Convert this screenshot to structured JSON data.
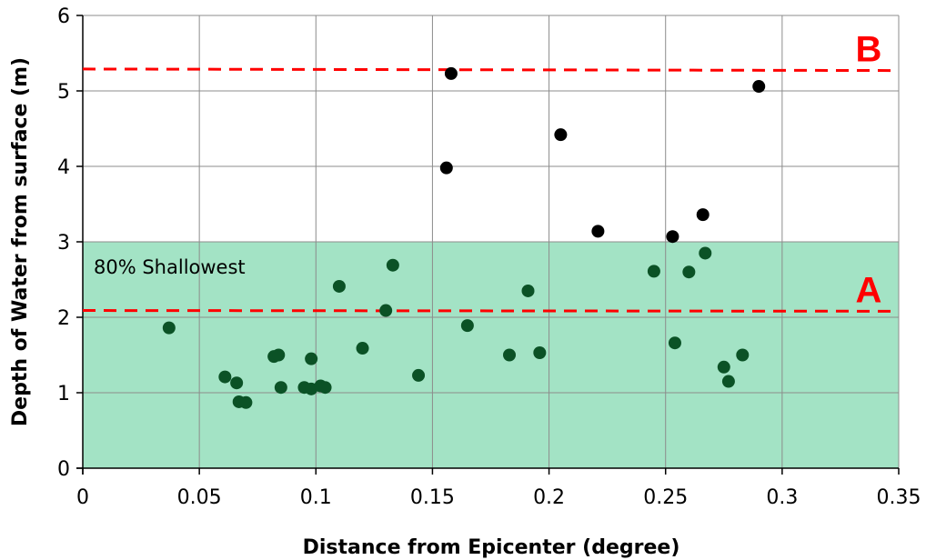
{
  "chart_data": {
    "type": "scatter",
    "xlabel": "Distance from Epicenter (degree)",
    "ylabel": "Depth of Water from surface (m)",
    "xlim": [
      0,
      0.35
    ],
    "ylim": [
      0,
      6
    ],
    "x_ticks": [
      "0",
      "0.05",
      "0.1",
      "0.15",
      "0.2",
      "0.25",
      "0.3",
      "0.35"
    ],
    "y_ticks": [
      "0",
      "1",
      "2",
      "3",
      "4",
      "5",
      "6"
    ],
    "grid": true,
    "shaded_region": {
      "label": "80% Shallowest",
      "y_from": 0,
      "y_to": 3,
      "color": "#a3e3c5"
    },
    "reference_lines": [
      {
        "label": "A",
        "y_start": 2.09,
        "y_end": 2.08,
        "color": "#ff0000",
        "style": "dashed"
      },
      {
        "label": "B",
        "y_start": 5.29,
        "y_end": 5.27,
        "color": "#ff0000",
        "style": "dashed"
      }
    ],
    "points_color_shallow": "#0b5226",
    "points_color_deep": "#000000",
    "points": [
      [
        0.037,
        1.86
      ],
      [
        0.061,
        1.21
      ],
      [
        0.066,
        1.13
      ],
      [
        0.067,
        0.88
      ],
      [
        0.07,
        0.87
      ],
      [
        0.082,
        1.48
      ],
      [
        0.084,
        1.5
      ],
      [
        0.085,
        1.07
      ],
      [
        0.095,
        1.07
      ],
      [
        0.098,
        1.05
      ],
      [
        0.098,
        1.45
      ],
      [
        0.102,
        1.09
      ],
      [
        0.104,
        1.07
      ],
      [
        0.11,
        2.41
      ],
      [
        0.12,
        1.59
      ],
      [
        0.13,
        2.09
      ],
      [
        0.133,
        2.69
      ],
      [
        0.144,
        1.23
      ],
      [
        0.156,
        3.98
      ],
      [
        0.158,
        5.23
      ],
      [
        0.165,
        1.89
      ],
      [
        0.183,
        1.5
      ],
      [
        0.191,
        2.35
      ],
      [
        0.196,
        1.53
      ],
      [
        0.205,
        4.42
      ],
      [
        0.221,
        3.14
      ],
      [
        0.245,
        2.61
      ],
      [
        0.253,
        3.07
      ],
      [
        0.254,
        1.66
      ],
      [
        0.26,
        2.6
      ],
      [
        0.266,
        3.36
      ],
      [
        0.267,
        2.85
      ],
      [
        0.275,
        1.34
      ],
      [
        0.277,
        1.15
      ],
      [
        0.283,
        1.5
      ],
      [
        0.29,
        5.06
      ]
    ]
  }
}
